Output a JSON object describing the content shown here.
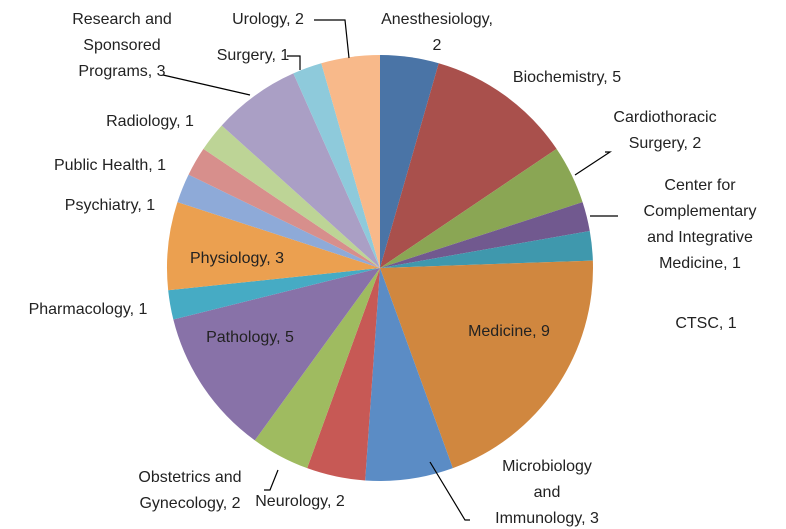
{
  "chart_data": {
    "type": "pie",
    "labels": [
      [
        "Anesthesiology,",
        "2"
      ],
      [
        "Biochemistry, 5"
      ],
      [
        "Cardiothoracic",
        "Surgery, 2"
      ],
      [
        "Center for",
        "Complementary",
        "and Integrative",
        "Medicine, 1"
      ],
      [
        "CTSC, 1"
      ],
      [
        "Medicine, 9"
      ],
      [
        "Microbiology",
        "and",
        "Immunology, 3"
      ],
      [
        "Neurology, 2"
      ],
      [
        "Obstetrics and",
        "Gynecology, 2"
      ],
      [
        "Pathology, 5"
      ],
      [
        "Pharmacology, 1"
      ],
      [
        "Physiology, 3"
      ],
      [
        "Psychiatry, 1"
      ],
      [
        "Public Health, 1"
      ],
      [
        "Radiology, 1"
      ],
      [
        "Research and",
        "Sponsored",
        "Programs, 3"
      ],
      [
        "Surgery, 1"
      ],
      [
        "Urology, 2"
      ]
    ],
    "values": [
      2,
      5,
      2,
      1,
      1,
      9,
      3,
      2,
      2,
      5,
      1,
      3,
      1,
      1,
      1,
      3,
      1,
      2
    ],
    "colors": [
      "#4a74a6",
      "#a9504c",
      "#8aa654",
      "#71598f",
      "#3f98ad",
      "#d0873f",
      "#5b8cc5",
      "#c75955",
      "#9fbb60",
      "#8872a8",
      "#46abc4",
      "#eba050",
      "#8eaad8",
      "#d78f8c",
      "#bdd496",
      "#aa9fc5",
      "#8ecadb",
      "#f8b98a"
    ]
  }
}
